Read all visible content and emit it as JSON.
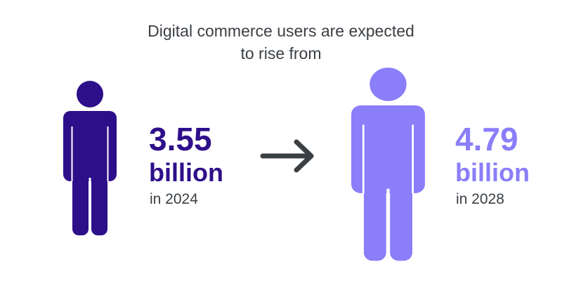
{
  "title_lines": [
    "Digital commerce users are expected",
    "to rise from"
  ],
  "stats": [
    {
      "value": 3.55,
      "unit": "billion",
      "period": "in 2024",
      "color": "#2e0f8a"
    },
    {
      "value": 4.79,
      "unit": "billion",
      "period": "in 2028",
      "color": "#8a7ef9"
    }
  ]
}
